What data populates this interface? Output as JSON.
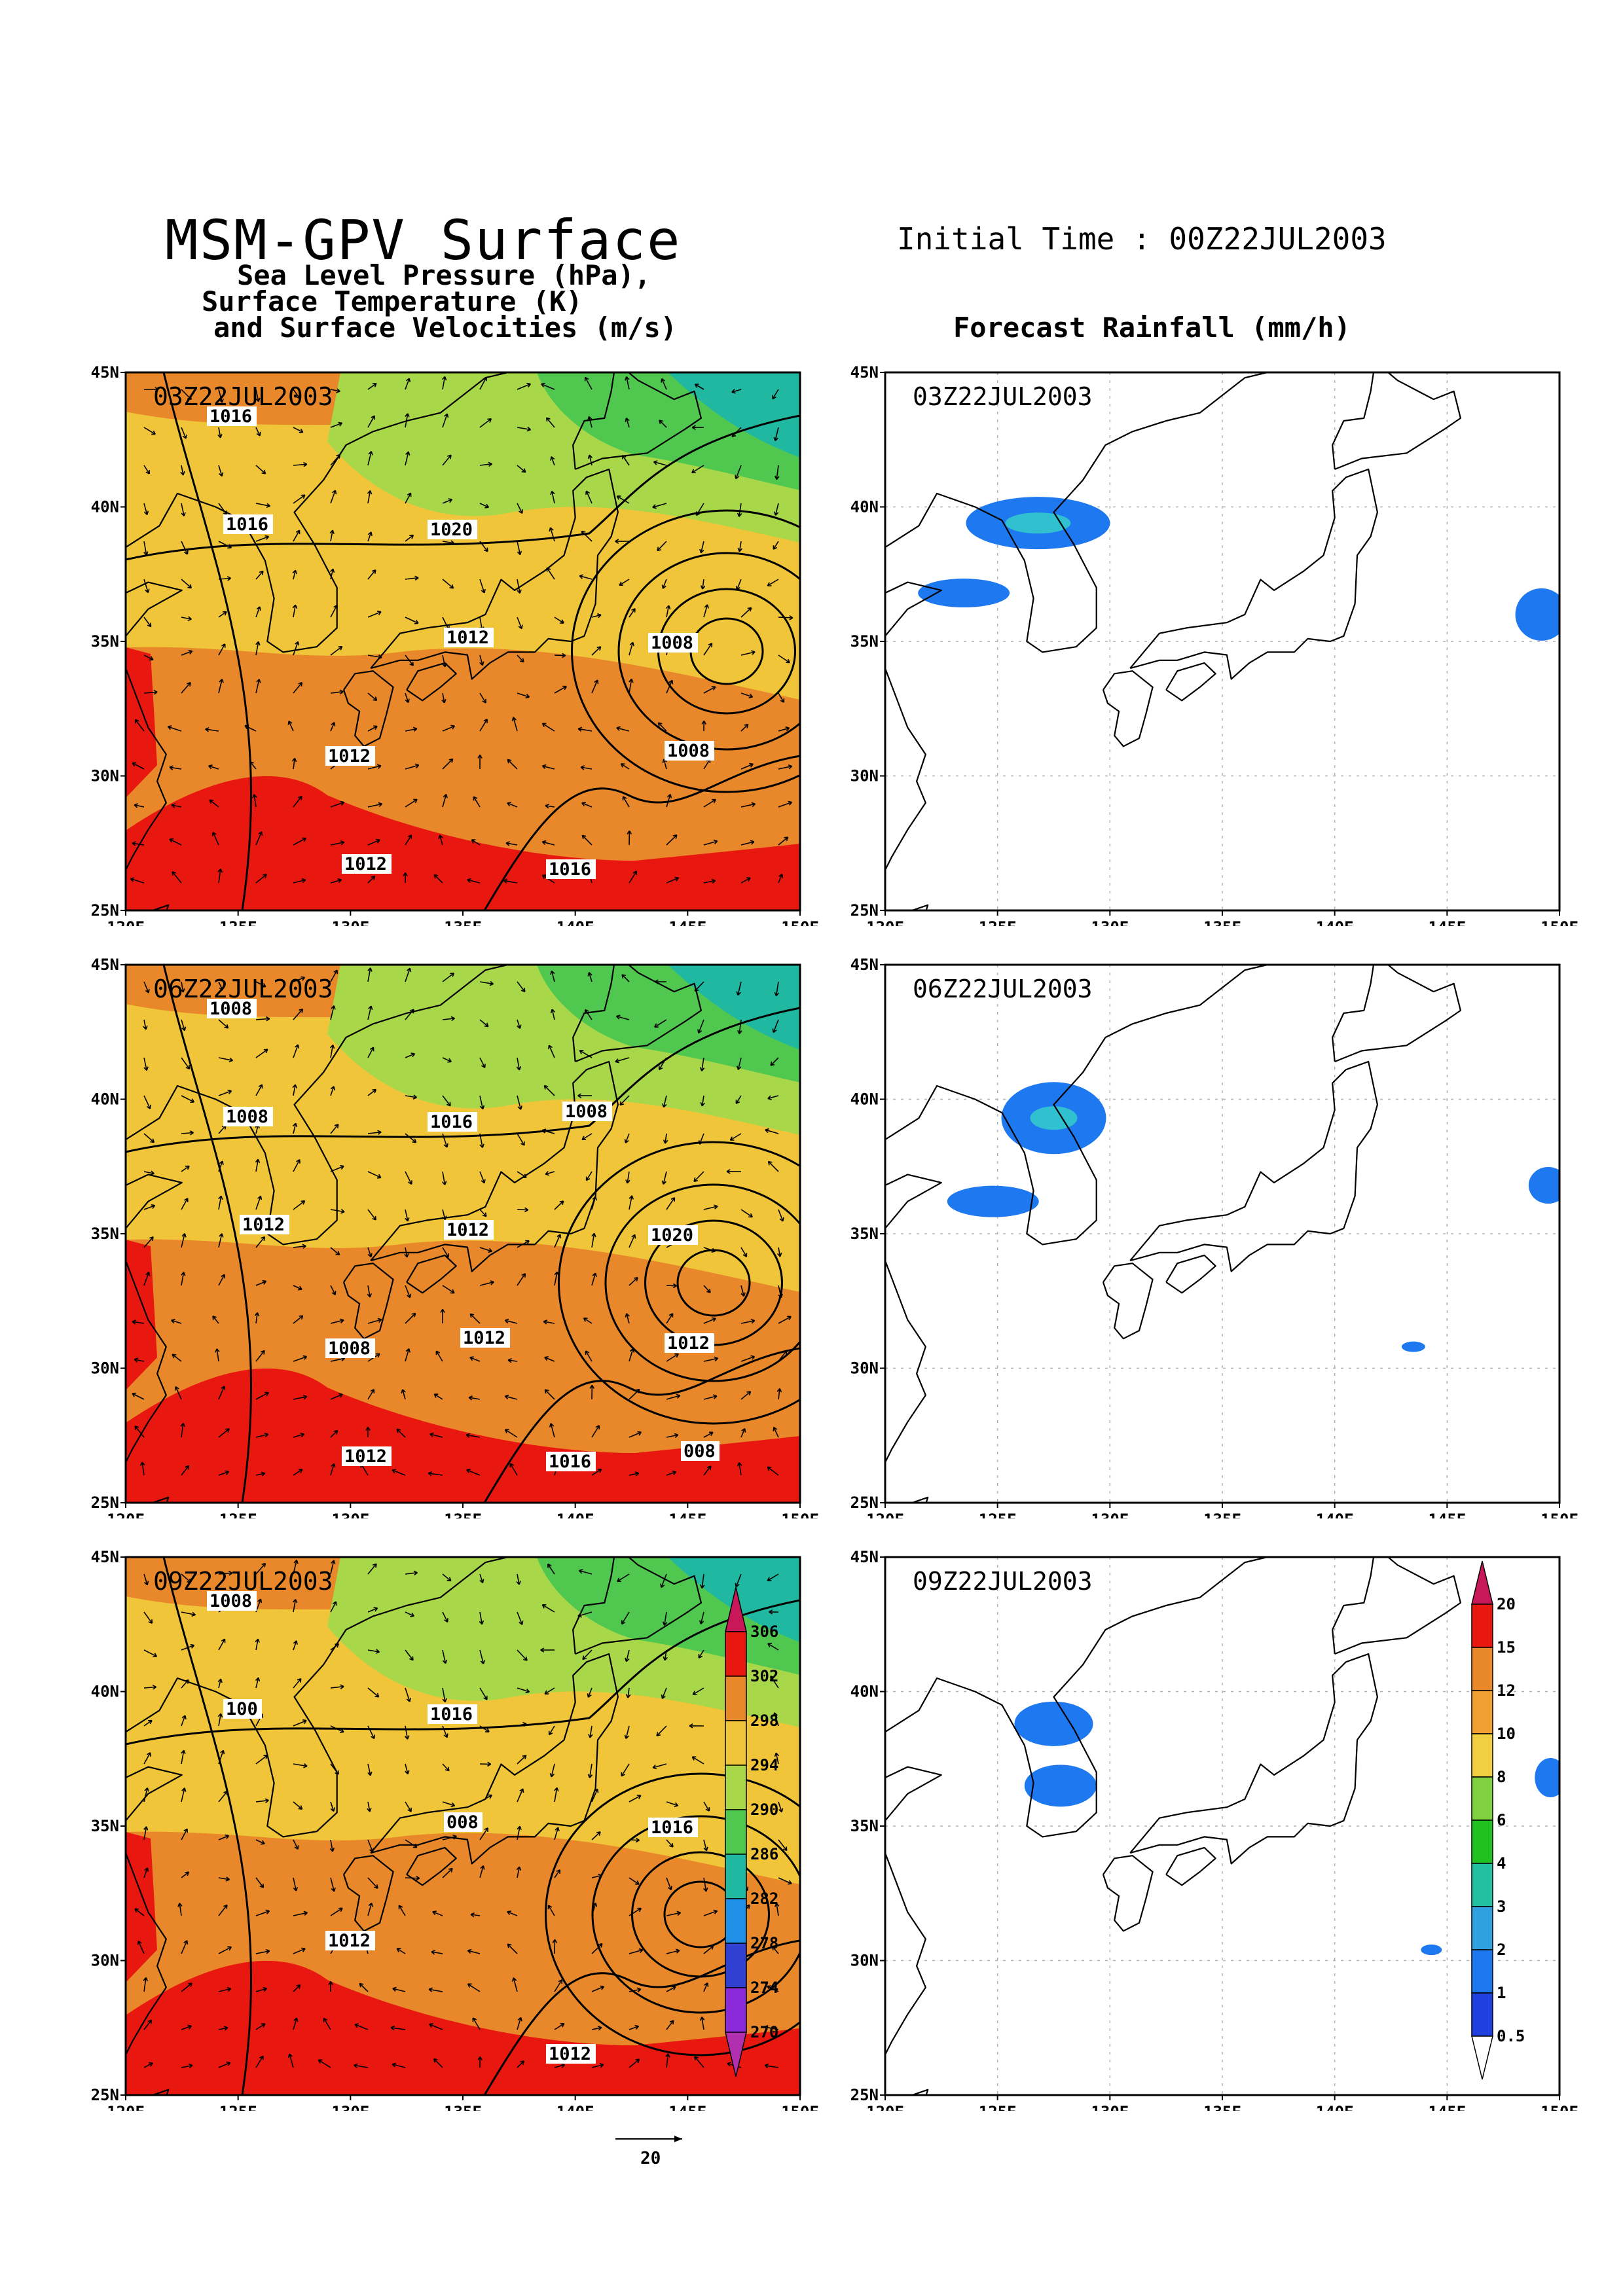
{
  "header": {
    "title": "MSM-GPV Surface",
    "initial_time": "Initial Time : 00Z22JUL2003",
    "subtitle_1": "Sea Level Pressure (hPa),",
    "subtitle_2": "Surface Temperature (K)",
    "subtitle_3": "and Surface Velocities (m/s)",
    "rain_title": "Forecast Rainfall (mm/h)"
  },
  "axes": {
    "lon_labels": [
      "120E",
      "125E",
      "130E",
      "135E",
      "140E",
      "145E",
      "150E"
    ],
    "lat_labels": [
      "45N",
      "40N",
      "35N",
      "30N",
      "25N"
    ]
  },
  "times": [
    "03Z22JUL2003",
    "06Z22JUL2003",
    "09Z22JUL2003"
  ],
  "pressure_labels": [
    [
      "1016",
      "1020",
      "1008",
      "1012",
      "1016",
      "1016",
      "1012",
      "1008",
      "1012"
    ],
    [
      "1008",
      "1016",
      "1020",
      "1008",
      "1016",
      "1008",
      "1012",
      "1012",
      "1012",
      "1008",
      "1012",
      "1012",
      "008"
    ],
    [
      "1008",
      "1016",
      "1016",
      "1012",
      "1012",
      "100",
      "008"
    ]
  ],
  "vector_scale": {
    "value": "20"
  },
  "temperature_colorbar": {
    "levels": [
      "306",
      "302",
      "298",
      "294",
      "290",
      "286",
      "282",
      "278",
      "274",
      "270"
    ],
    "colors": [
      "#c8185a",
      "#e8170f",
      "#e8882a",
      "#f0c53a",
      "#a8d84a",
      "#50c850",
      "#20b8a0",
      "#1f90e8",
      "#3040d0",
      "#8a2ad8",
      "#b030b0"
    ]
  },
  "rain_colorbar": {
    "levels": [
      "20",
      "15",
      "12",
      "10",
      "8",
      "6",
      "4",
      "3",
      "2",
      "1",
      "0.5"
    ],
    "colors": [
      "#c8185a",
      "#e8170f",
      "#e8882a",
      "#f0a030",
      "#f0d040",
      "#80d040",
      "#20c020",
      "#20c0a0",
      "#30a0e0",
      "#1e78f0",
      "#2040e0",
      "#ffffff"
    ]
  },
  "colors": {
    "warm_red": "#e8170f",
    "orange": "#e8882a",
    "yellow": "#f0c53a",
    "light_green": "#a8d84a",
    "green": "#50c850",
    "teal": "#20b8a0",
    "rain_blue": "#1e78f0",
    "rain_cyan": "#30c0d0"
  }
}
